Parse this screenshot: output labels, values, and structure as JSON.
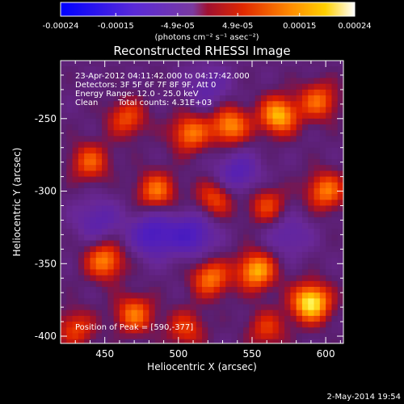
{
  "chart_data": {
    "type": "heatmap",
    "title": "Reconstructed RHESSI Image",
    "xlabel": "Heliocentric X (arcsec)",
    "ylabel": "Heliocentric Y (arcsec)",
    "xlim": [
      420,
      612
    ],
    "ylim": [
      -405,
      -210
    ],
    "xticks": [
      450,
      500,
      550,
      600
    ],
    "yticks": [
      -250,
      -300,
      -350,
      -400
    ],
    "colorbar": {
      "min": -0.00024,
      "max": 0.00024,
      "tick_labels": [
        "-0.00024",
        "-0.00015",
        "-4.9e-05",
        "4.9e-05",
        "0.00015",
        "0.00024"
      ],
      "tick_values": [
        -0.00024,
        -0.00015,
        -4.9e-05,
        4.9e-05,
        0.00015,
        0.00024
      ],
      "units": "(photons cm⁻² s⁻¹ asec⁻²)"
    },
    "annotations": {
      "time_range": "23-Apr-2012 04:11:42.000 to 04:17:42.000",
      "detectors": "Detectors: 3F 5F 6F 7F 8F 9F, Att 0",
      "energy_range": "Energy Range: 12.0 - 25.0 keV",
      "algorithm": "Clean",
      "total_counts": "Total counts: 4.31E+03",
      "peak": "Position of Peak = [590,-377]"
    },
    "peak": [
      590,
      -377
    ],
    "sources": [
      {
        "x": 590,
        "y": -377,
        "intensity": 1.0
      },
      {
        "x": 553,
        "y": -355,
        "intensity": 0.78
      },
      {
        "x": 568,
        "y": -248,
        "intensity": 0.8
      },
      {
        "x": 535,
        "y": -255,
        "intensity": 0.7
      },
      {
        "x": 508,
        "y": -260,
        "intensity": 0.62
      },
      {
        "x": 485,
        "y": -300,
        "intensity": 0.6
      },
      {
        "x": 450,
        "y": -348,
        "intensity": 0.66
      },
      {
        "x": 470,
        "y": -385,
        "intensity": 0.6
      },
      {
        "x": 522,
        "y": -360,
        "intensity": 0.62
      },
      {
        "x": 440,
        "y": -280,
        "intensity": 0.52
      },
      {
        "x": 600,
        "y": -300,
        "intensity": 0.62
      },
      {
        "x": 595,
        "y": -238,
        "intensity": 0.56
      },
      {
        "x": 525,
        "y": -305,
        "intensity": 0.5
      },
      {
        "x": 465,
        "y": -250,
        "intensity": 0.48
      },
      {
        "x": 560,
        "y": -310,
        "intensity": 0.46
      },
      {
        "x": 505,
        "y": -395,
        "intensity": 0.42
      },
      {
        "x": 430,
        "y": -395,
        "intensity": 0.44
      },
      {
        "x": 560,
        "y": -395,
        "intensity": 0.4
      }
    ],
    "minima": [
      {
        "x": 483,
        "y": -330,
        "depth": 0.55
      },
      {
        "x": 510,
        "y": -330,
        "depth": 0.5
      },
      {
        "x": 540,
        "y": -288,
        "depth": 0.42
      },
      {
        "x": 445,
        "y": -320,
        "depth": 0.35
      },
      {
        "x": 575,
        "y": -330,
        "depth": 0.3
      },
      {
        "x": 520,
        "y": -228,
        "depth": 0.3
      }
    ]
  },
  "footer": {
    "date": "2-May-2014 19:54"
  }
}
